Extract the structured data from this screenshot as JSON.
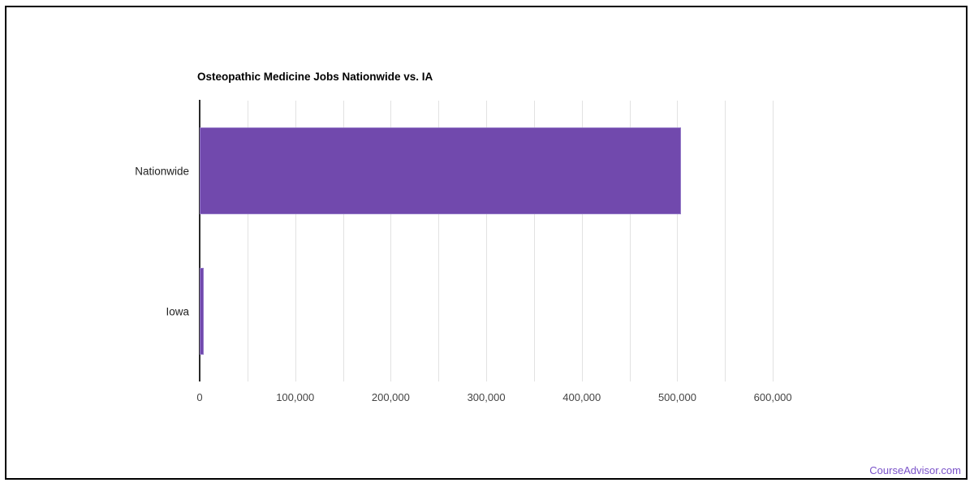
{
  "page": {
    "background": "#ffffff",
    "frame_border_color": "#000000"
  },
  "chart_data": {
    "type": "bar",
    "orientation": "horizontal",
    "title": "Osteopathic Medicine Jobs Nationwide vs. IA",
    "categories": [
      "Nationwide",
      "Iowa"
    ],
    "values": [
      504000,
      4200
    ],
    "xlabel": "",
    "ylabel": "",
    "xlim": [
      0,
      650000
    ],
    "x_major_ticks": [
      0,
      100000,
      200000,
      300000,
      400000,
      500000,
      600000
    ],
    "x_tick_labels": [
      "0",
      "100,000",
      "200,000",
      "300,000",
      "400,000",
      "500,000",
      "600,000"
    ],
    "x_minor_tick_step": 50000,
    "grid": true,
    "legend": "none",
    "bar_color": "#7149ad",
    "bar_border_color": "#9378c6",
    "gridline_color": "#e2e2e2",
    "axis_line_color": "#2a2a2a",
    "tick_label_color": "#444444",
    "category_label_color": "#222222",
    "title_color": "#000000"
  },
  "footer": {
    "link_label": "CourseAdvisor.com",
    "link_color": "#7a52c9"
  }
}
